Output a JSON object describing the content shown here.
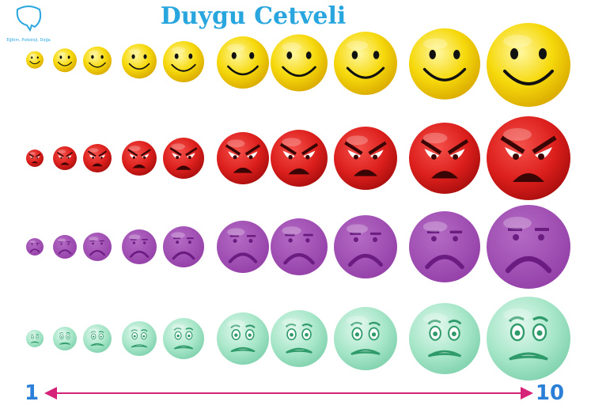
{
  "header": {
    "title": "Duygu Cetveli",
    "logo_tagline": "Eğitim, Psikoloji, Doğa"
  },
  "scale": {
    "start": "1",
    "end": "10"
  }
}
